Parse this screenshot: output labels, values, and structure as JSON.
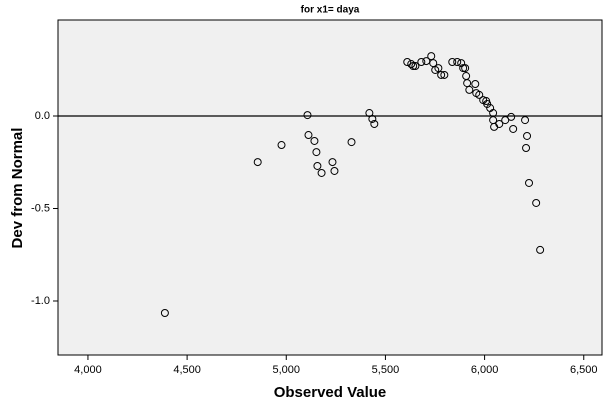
{
  "chart_data": {
    "type": "scatter",
    "title": "for x1= daya",
    "x_label": "Observed Value",
    "y_label": "Dev from Normal",
    "x": [
      4388,
      4856,
      4976,
      5107,
      5112,
      5142,
      5152,
      5157,
      5178,
      5233,
      5243,
      5329,
      5419,
      5434,
      5444,
      5610,
      5630,
      5640,
      5651,
      5681,
      5706,
      5731,
      5741,
      5751,
      5767,
      5781,
      5797,
      5837,
      5862,
      5882,
      5892,
      5902,
      5907,
      5912,
      5923,
      5953,
      5958,
      5973,
      5993,
      6008,
      6013,
      6028,
      6043,
      6043,
      6048,
      6074,
      6104,
      6134,
      6144,
      6204,
      6209,
      6214,
      6224,
      6260,
      6280
    ],
    "values": [
      -1.065,
      -0.249,
      -0.157,
      0.005,
      -0.103,
      -0.135,
      -0.195,
      -0.27,
      -0.308,
      -0.249,
      -0.297,
      -0.141,
      0.016,
      -0.016,
      -0.043,
      0.292,
      0.281,
      0.27,
      0.27,
      0.292,
      0.297,
      0.324,
      0.286,
      0.249,
      0.259,
      0.222,
      0.222,
      0.292,
      0.292,
      0.286,
      0.259,
      0.259,
      0.216,
      0.178,
      0.141,
      0.173,
      0.124,
      0.114,
      0.086,
      0.081,
      0.065,
      0.043,
      0.016,
      -0.022,
      -0.059,
      -0.043,
      -0.022,
      -0.005,
      -0.07,
      -0.022,
      -0.173,
      -0.108,
      -0.362,
      -0.47,
      -0.724
    ],
    "color": "#000000",
    "reference_y": 0,
    "xlim": [
      3849,
      6592
    ],
    "ylim": [
      -1.292,
      0.519
    ],
    "xticks": [
      {
        "value": 4000,
        "label": "4,000"
      },
      {
        "value": 4500,
        "label": "4,500"
      },
      {
        "value": 5000,
        "label": "5,000"
      },
      {
        "value": 5500,
        "label": "5,500"
      },
      {
        "value": 6000,
        "label": "6,000"
      },
      {
        "value": 6500,
        "label": "6,500"
      }
    ],
    "yticks": [
      {
        "value": 0,
        "label": "0.0"
      },
      {
        "value": -0.5,
        "label": "-0.5"
      },
      {
        "value": -1,
        "label": "-1.0"
      }
    ]
  }
}
